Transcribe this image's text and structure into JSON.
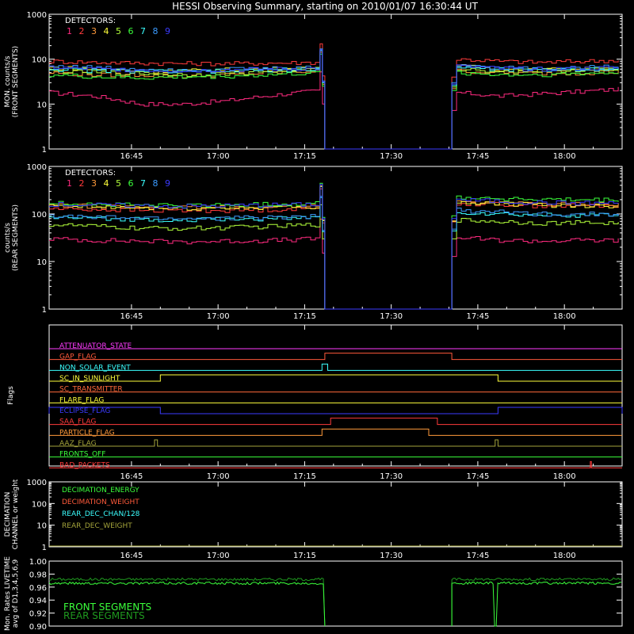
{
  "title": "HESSI Observing Summary, starting on 2010/01/07 16:30:44 UT",
  "colors": {
    "background": "#000000",
    "axes": "#ffffff",
    "detectors": [
      "#ff2a7f",
      "#ff3b3b",
      "#ff9a3b",
      "#ffff3b",
      "#b3ff3b",
      "#3bff3b",
      "#3bffff",
      "#3b9bff",
      "#3b3bff"
    ]
  },
  "chart_data": [
    {
      "type": "line",
      "panel": "front_rates",
      "ylabel": [
        "MON. counts/s",
        "(FRONT SEGMENTS)"
      ],
      "yscale": "log",
      "ylim": [
        1,
        1000
      ],
      "yticks": [
        "1",
        "10",
        "100",
        "1000"
      ],
      "xlim": [
        "16:30:44",
        "18:10:00"
      ],
      "xticks": [
        "16:45",
        "17:00",
        "17:15",
        "17:30",
        "17:45",
        "18:00"
      ],
      "legend_title": "DETECTORS:",
      "legend_labels": [
        "1",
        "2",
        "3",
        "4",
        "5",
        "6",
        "7",
        "8",
        "9"
      ],
      "gap": [
        "17:18:30",
        "17:40:30"
      ],
      "series": [
        {
          "name": "1",
          "before": [
            18,
            15,
            10,
            10,
            12,
            16,
            20
          ],
          "after": [
            18,
            15,
            17,
            19,
            22
          ]
        },
        {
          "name": "2",
          "before": [
            90,
            85,
            82,
            80,
            80,
            82,
            85
          ],
          "after": [
            100,
            90,
            85,
            90,
            95
          ]
        },
        {
          "name": "3",
          "before": [
            50,
            45,
            45,
            42,
            45,
            50,
            55
          ],
          "after": [
            55,
            50,
            48,
            50,
            52
          ]
        },
        {
          "name": "4",
          "before": [
            65,
            60,
            55,
            55,
            58,
            60,
            62
          ],
          "after": [
            70,
            60,
            58,
            60,
            62
          ]
        },
        {
          "name": "5",
          "before": [
            55,
            50,
            48,
            45,
            48,
            55,
            60
          ],
          "after": [
            60,
            55,
            55,
            58,
            60
          ]
        },
        {
          "name": "6",
          "before": [
            45,
            40,
            38,
            40,
            42,
            45,
            50
          ],
          "after": [
            50,
            45,
            45,
            48,
            50
          ]
        },
        {
          "name": "7",
          "before": [
            60,
            55,
            55,
            52,
            55,
            58,
            60
          ],
          "after": [
            65,
            60,
            58,
            60,
            62
          ]
        },
        {
          "name": "8",
          "before": [
            70,
            65,
            60,
            58,
            60,
            62,
            65
          ],
          "after": [
            75,
            65,
            62,
            65,
            68
          ]
        },
        {
          "name": "9",
          "before": [
            65,
            60,
            58,
            55,
            58,
            60,
            62
          ],
          "after": [
            70,
            62,
            60,
            62,
            65
          ]
        }
      ]
    },
    {
      "type": "line",
      "panel": "rear_rates",
      "ylabel": [
        "counts/s",
        "(REAR SEGMENTS)"
      ],
      "yscale": "log",
      "ylim": [
        1,
        1000
      ],
      "yticks": [
        "1",
        "10",
        "100",
        "1000"
      ],
      "xlim": [
        "16:30:44",
        "18:10:00"
      ],
      "xticks": [
        "16:45",
        "17:00",
        "17:15",
        "17:30",
        "17:45",
        "18:00"
      ],
      "legend_title": "DETECTORS:",
      "legend_labels": [
        "1",
        "2",
        "3",
        "4",
        "5",
        "6",
        "7",
        "8",
        "9"
      ],
      "gap": [
        "17:18:30",
        "17:40:30"
      ],
      "series": [
        {
          "name": "1",
          "before": [
            30,
            28,
            27,
            26,
            27,
            28,
            30
          ],
          "after": [
            32,
            28,
            27,
            28,
            28
          ]
        },
        {
          "name": "2",
          "before": [
            130,
            125,
            120,
            118,
            120,
            125,
            130
          ],
          "after": [
            170,
            160,
            150,
            150,
            150
          ]
        },
        {
          "name": "3",
          "before": [
            150,
            145,
            140,
            135,
            138,
            142,
            150
          ],
          "after": [
            180,
            170,
            160,
            160,
            160
          ]
        },
        {
          "name": "4",
          "before": [
            150,
            140,
            135,
            130,
            135,
            140,
            145
          ],
          "after": [
            175,
            165,
            155,
            150,
            150
          ]
        },
        {
          "name": "5",
          "before": [
            60,
            55,
            50,
            50,
            52,
            55,
            60
          ],
          "after": [
            75,
            70,
            65,
            65,
            65
          ]
        },
        {
          "name": "6",
          "before": [
            170,
            160,
            155,
            150,
            155,
            160,
            170
          ],
          "after": [
            230,
            210,
            200,
            195,
            195
          ]
        },
        {
          "name": "7",
          "before": [
            85,
            80,
            78,
            75,
            78,
            80,
            85
          ],
          "after": [
            110,
            100,
            95,
            95,
            95
          ]
        },
        {
          "name": "8",
          "before": [
            90,
            85,
            82,
            80,
            82,
            85,
            90
          ],
          "after": [
            120,
            110,
            100,
            100,
            100
          ]
        },
        {
          "name": "9",
          "before": [
            160,
            155,
            150,
            145,
            150,
            155,
            160
          ],
          "after": [
            200,
            185,
            175,
            170,
            170
          ]
        }
      ]
    },
    {
      "type": "line",
      "panel": "flags",
      "ylabel": [
        "Flags"
      ],
      "xlim": [
        "16:30:44",
        "18:10:00"
      ],
      "xticks": [
        "16:45",
        "17:00",
        "17:15",
        "17:30",
        "17:45",
        "18:00"
      ],
      "flags": [
        {
          "name": "ATTENUATOR_STATE",
          "color": "#ff3bff",
          "high": []
        },
        {
          "name": "GAP_FLAG",
          "color": "#ff5a3b",
          "high": [
            [
              "17:18:30",
              "17:40:30"
            ]
          ]
        },
        {
          "name": "NON_SOLAR_EVENT",
          "color": "#3bffff",
          "high": [
            [
              "17:18:00",
              "17:19:00"
            ]
          ]
        },
        {
          "name": "SC_IN_SUNLIGHT",
          "color": "#ffff3b",
          "high": [
            [
              "16:50:00",
              "17:48:30"
            ]
          ]
        },
        {
          "name": "SC_TRANSMITTER",
          "color": "#ff6a3b",
          "high": []
        },
        {
          "name": "FLARE_FLAG",
          "color": "#ffff3b",
          "high": []
        },
        {
          "name": "ECLIPSE_FLAG",
          "color": "#3b3bff",
          "high": [
            [
              "16:30:44",
              "16:50:00"
            ],
            [
              "17:48:30",
              "18:10:00"
            ]
          ]
        },
        {
          "name": "SAA_FLAG",
          "color": "#ff3b3b",
          "high": [
            [
              "17:19:30",
              "17:38:00"
            ]
          ]
        },
        {
          "name": "PARTICLE_FLAG",
          "color": "#ff9a3b",
          "high": [
            [
              "17:18:00",
              "17:36:30"
            ]
          ]
        },
        {
          "name": "AAZ_FLAG",
          "color": "#a4a43b",
          "high": [
            [
              "16:49:00",
              "16:49:30"
            ],
            [
              "17:48:00",
              "17:48:30"
            ]
          ]
        },
        {
          "name": "FRONTS_OFF",
          "color": "#3bff3b",
          "high": []
        },
        {
          "name": "BAD_PACKETS",
          "color": "#ff3b3b",
          "high": [
            [
              "18:04:30",
              "18:04:40"
            ]
          ]
        }
      ]
    },
    {
      "type": "line",
      "panel": "decimation",
      "ylabel": [
        "DECIMATION",
        "CHANNEL or weight"
      ],
      "yscale": "log",
      "ylim": [
        1,
        1000
      ],
      "yticks": [
        "1",
        "10",
        "100",
        "1000"
      ],
      "xlim": [
        "16:30:44",
        "18:10:00"
      ],
      "xticks": [
        "16:45",
        "17:00",
        "17:15",
        "17:30",
        "17:45",
        "18:00"
      ],
      "legend": [
        {
          "name": "DECIMATION_ENERGY",
          "color": "#3bff3b"
        },
        {
          "name": "DECIMATION_WEIGHT",
          "color": "#ff5a3b"
        },
        {
          "name": "REAR_DEC_CHAN/128",
          "color": "#3bffff"
        },
        {
          "name": "REAR_DEC_WEIGHT",
          "color": "#a4a43b"
        }
      ]
    },
    {
      "type": "line",
      "panel": "livetime",
      "ylabel": [
        "Mon. Rates LIVETIME",
        "avg of D1,3,4,5,6,9"
      ],
      "ylim": [
        0.9,
        1.0
      ],
      "yticks": [
        "0.90",
        "0.92",
        "0.94",
        "0.96",
        "0.98",
        "1.00"
      ],
      "xlim": [
        "16:30:44",
        "18:10:00"
      ],
      "gap": [
        "17:18:30",
        "17:40:30"
      ],
      "legend": [
        {
          "name": "FRONT SEGMENTS",
          "color": "#3bff3b"
        },
        {
          "name": "REAR SEGMENTS",
          "color": "#1f9a1f"
        }
      ],
      "series": [
        {
          "name": "FRONT SEGMENTS",
          "level": 0.966
        },
        {
          "name": "REAR SEGMENTS",
          "level": 0.972
        }
      ]
    }
  ]
}
